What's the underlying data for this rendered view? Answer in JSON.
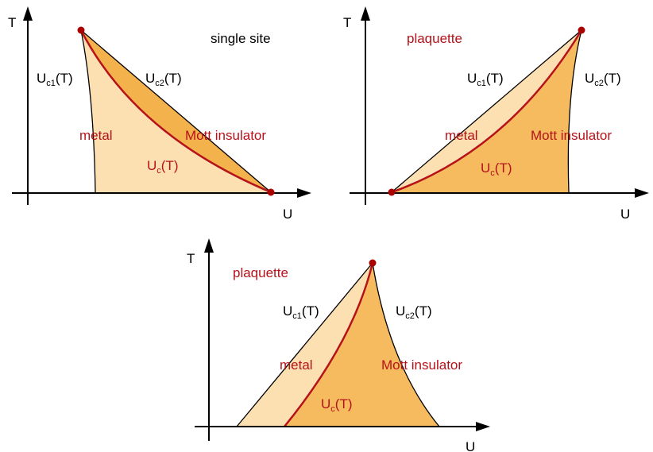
{
  "panels": [
    {
      "title": "single site",
      "axis_t": "T",
      "axis_u": "U",
      "uc1": {
        "u": "U",
        "sub": "c1",
        "t": "(T)"
      },
      "uc2": {
        "u": "U",
        "sub": "c2",
        "t": "(T)"
      },
      "uc": {
        "u": "U",
        "sub": "c",
        "t": "(T)"
      },
      "metal": "metal",
      "insulator": "Mott insulator"
    },
    {
      "title": "plaquette",
      "axis_t": "T",
      "axis_u": "U",
      "uc1": {
        "u": "U",
        "sub": "c1",
        "t": "(T)"
      },
      "uc2": {
        "u": "U",
        "sub": "c2",
        "t": "(T)"
      },
      "uc": {
        "u": "U",
        "sub": "c",
        "t": "(T)"
      },
      "metal": "metal",
      "insulator": "Mott insulator"
    },
    {
      "title": "plaquette",
      "axis_t": "T",
      "axis_u": "U",
      "uc1": {
        "u": "U",
        "sub": "c1",
        "t": "(T)"
      },
      "uc2": {
        "u": "U",
        "sub": "c2",
        "t": "(T)"
      },
      "uc": {
        "u": "U",
        "sub": "c",
        "t": "(T)"
      },
      "metal": "metal",
      "insulator": "Mott insulator"
    }
  ]
}
